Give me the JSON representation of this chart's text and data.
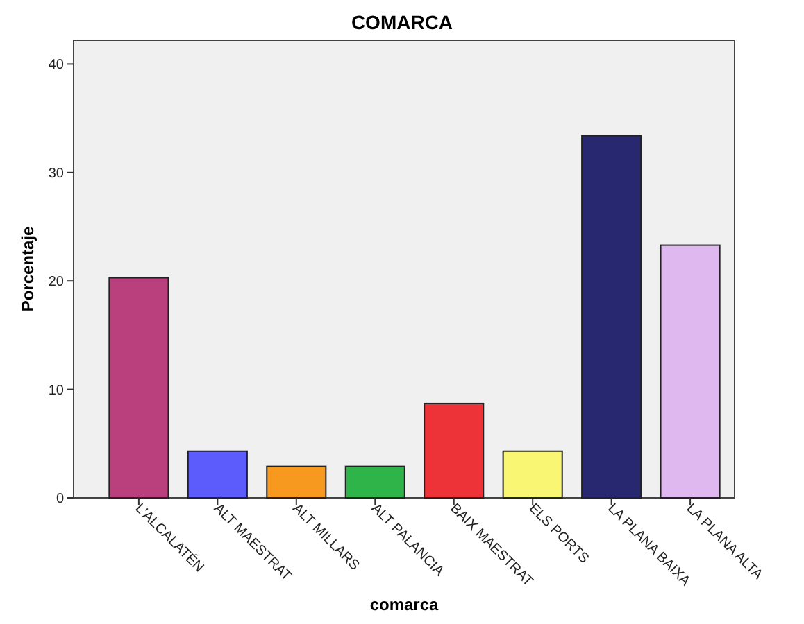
{
  "chart_data": {
    "type": "bar",
    "title": "COMARCA",
    "xlabel": "comarca",
    "ylabel": "Porcentaje",
    "categories": [
      "L'ALCALATÉN",
      "ALT MAESTRAT",
      "ALT MILLARS",
      "ALT PALANCIA",
      "BAIX MAESTRAT",
      "ELS PORTS",
      "LA PLANA BAIXA",
      "LA PLANA ALTA"
    ],
    "values": [
      20.3,
      4.3,
      2.9,
      2.9,
      8.7,
      4.3,
      33.4,
      23.3
    ],
    "colors": [
      "#b9407c",
      "#5c5cfc",
      "#f7981f",
      "#2fb44a",
      "#ee3338",
      "#f9f673",
      "#27286f",
      "#dfb8f0"
    ],
    "ylim": [
      0,
      42.2
    ],
    "yticks": [
      0,
      10,
      20,
      30,
      40
    ],
    "grid": false
  }
}
